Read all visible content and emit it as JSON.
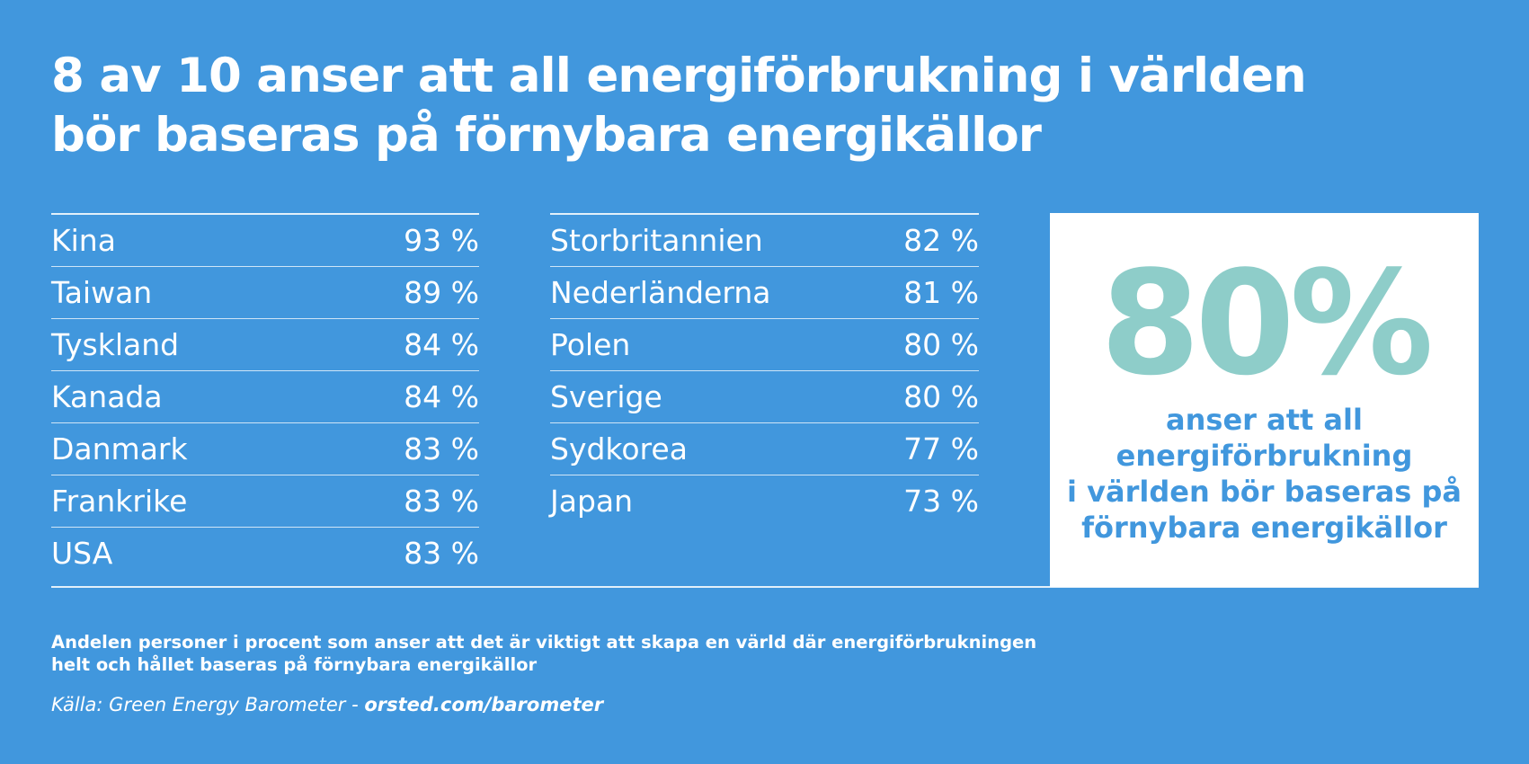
{
  "headline": "8 av 10 anser att all energiförbrukning i världen bör baseras på förnybara energikällor",
  "chart_data": {
    "type": "table",
    "columns": [
      [
        {
          "country": "Kina",
          "label": "93 %",
          "value": 93
        },
        {
          "country": "Taiwan",
          "label": "89 %",
          "value": 89
        },
        {
          "country": "Tyskland",
          "label": "84 %",
          "value": 84
        },
        {
          "country": "Kanada",
          "label": "84 %",
          "value": 84
        },
        {
          "country": "Danmark",
          "label": "83 %",
          "value": 83
        },
        {
          "country": "Frankrike",
          "label": "83 %",
          "value": 83
        },
        {
          "country": "USA",
          "label": "83 %",
          "value": 83
        }
      ],
      [
        {
          "country": "Storbritannien",
          "label": "82 %",
          "value": 82
        },
        {
          "country": "Nederländerna",
          "label": "81 %",
          "value": 81
        },
        {
          "country": "Polen",
          "label": "80 %",
          "value": 80
        },
        {
          "country": "Sverige",
          "label": "80 %",
          "value": 80
        },
        {
          "country": "Sydkorea",
          "label": "77 %",
          "value": 77
        },
        {
          "country": "Japan",
          "label": "73 %",
          "value": 73
        }
      ]
    ]
  },
  "highlight": {
    "value": "80%",
    "caption_lines": [
      "anser att all",
      "energiförbrukning",
      "i världen bör baseras på",
      "förnybara energikällor"
    ]
  },
  "footnote_lines": [
    "Andelen personer i procent som anser att det är viktigt att skapa en värld där energiförbrukningen",
    "helt och hållet baseras på förnybara energikällor"
  ],
  "source": {
    "prefix": "Källa: Green Energy Barometer - ",
    "link": "orsted.com/barometer"
  },
  "colors": {
    "background": "#4197dd",
    "highlight_value": "#8ecdc9",
    "highlight_caption": "#4197dd"
  }
}
